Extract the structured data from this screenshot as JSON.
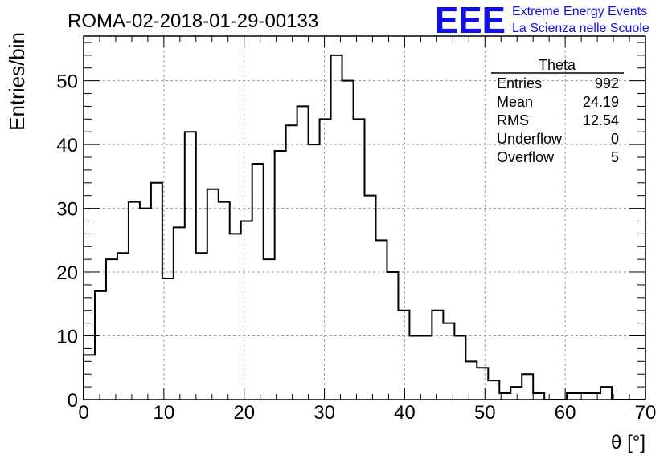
{
  "title": "ROMA-02-2018-01-29-00133",
  "logo": {
    "mark": "EEE",
    "line1": "Extreme Energy Events",
    "line2": "La Scienza nelle Scuole",
    "color": "#1010e6"
  },
  "stats": {
    "name": "Theta",
    "rows": [
      {
        "label": "Entries",
        "value": "992"
      },
      {
        "label": "Mean",
        "value": "24.19"
      },
      {
        "label": "RMS",
        "value": "12.54"
      },
      {
        "label": "Underflow",
        "value": "0"
      },
      {
        "label": "Overflow",
        "value": "5"
      }
    ]
  },
  "chart_data": {
    "type": "bar",
    "style": "step-histogram",
    "xlabel": "θ [°]",
    "ylabel": "Entries/bin",
    "xlim": [
      0,
      70
    ],
    "ylim": [
      0,
      57
    ],
    "grid": true,
    "bin_width": 1.4,
    "x_ticks": [
      0,
      10,
      20,
      30,
      40,
      50,
      60,
      70
    ],
    "y_ticks": [
      0,
      10,
      20,
      30,
      40,
      50
    ],
    "values": [
      7,
      17,
      22,
      23,
      31,
      30,
      34,
      19,
      27,
      42,
      23,
      33,
      31,
      26,
      28,
      37,
      22,
      39,
      43,
      46,
      40,
      44,
      54,
      50,
      44,
      32,
      25,
      20,
      14,
      10,
      10,
      14,
      12,
      10,
      6,
      5,
      3,
      1,
      2,
      4,
      1,
      0,
      0,
      1,
      1,
      1,
      2,
      0,
      0,
      0
    ]
  }
}
